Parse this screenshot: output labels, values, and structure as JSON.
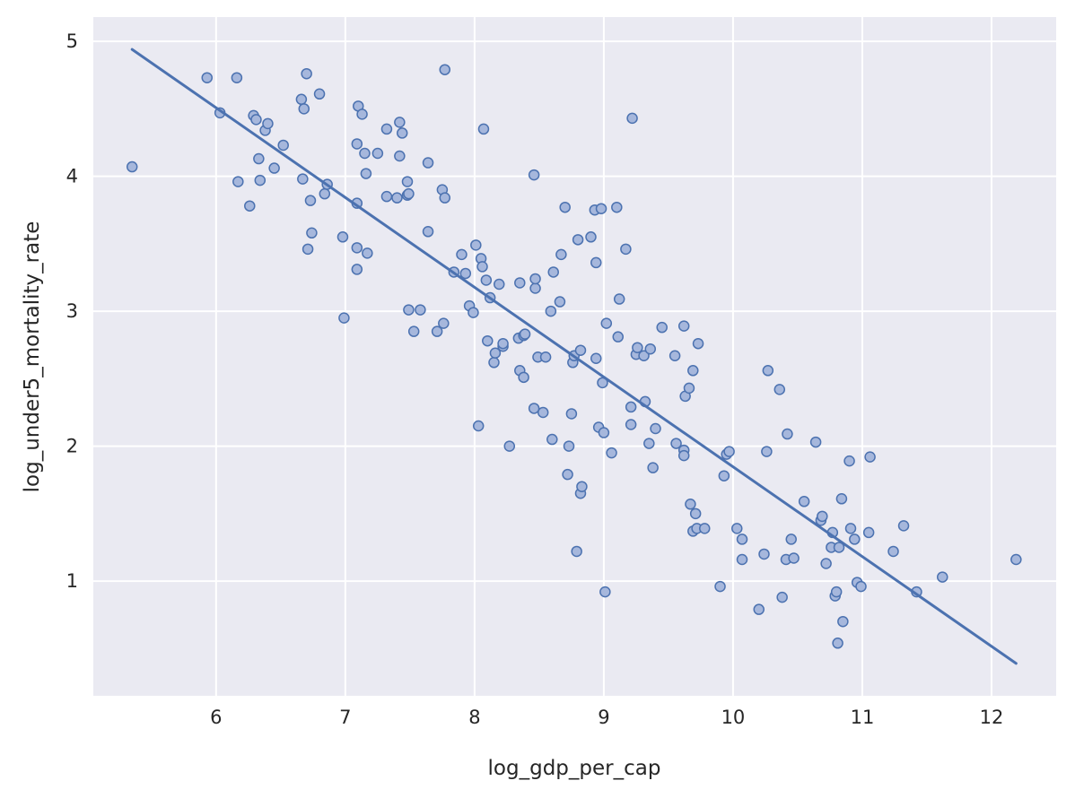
{
  "chart_data": {
    "type": "scatter",
    "title": "",
    "xlabel": "log_gdp_per_cap",
    "ylabel": "log_under5_mortality_rate",
    "xlim": [
      5.05,
      12.5
    ],
    "ylim": [
      0.15,
      5.18
    ],
    "x_ticks": [
      6,
      7,
      8,
      9,
      10,
      11,
      12
    ],
    "y_ticks": [
      1,
      2,
      3,
      4,
      5
    ],
    "grid": true,
    "legend": "none",
    "colors": {
      "background": "#eaeaf2",
      "grid": "#ffffff",
      "marker_fill": "#a6b7dc",
      "marker_edge": "#4c72b0",
      "line": "#4c72b0"
    },
    "regression_line": {
      "x": [
        5.35,
        12.19
      ],
      "y": [
        4.94,
        0.39
      ]
    },
    "points": [
      [
        5.35,
        4.07
      ],
      [
        5.93,
        4.73
      ],
      [
        6.03,
        4.47
      ],
      [
        6.16,
        4.73
      ],
      [
        6.17,
        3.96
      ],
      [
        6.26,
        3.78
      ],
      [
        6.29,
        4.45
      ],
      [
        6.31,
        4.42
      ],
      [
        6.33,
        4.13
      ],
      [
        6.34,
        3.97
      ],
      [
        6.38,
        4.34
      ],
      [
        6.4,
        4.39
      ],
      [
        6.45,
        4.06
      ],
      [
        6.52,
        4.23
      ],
      [
        6.66,
        4.57
      ],
      [
        6.67,
        3.98
      ],
      [
        6.68,
        4.5
      ],
      [
        6.7,
        4.76
      ],
      [
        6.71,
        3.46
      ],
      [
        6.73,
        3.82
      ],
      [
        6.74,
        3.58
      ],
      [
        6.8,
        4.61
      ],
      [
        6.84,
        3.87
      ],
      [
        6.86,
        3.94
      ],
      [
        6.98,
        3.55
      ],
      [
        6.99,
        2.95
      ],
      [
        7.09,
        4.24
      ],
      [
        7.09,
        3.8
      ],
      [
        7.09,
        3.47
      ],
      [
        7.09,
        3.31
      ],
      [
        7.1,
        4.52
      ],
      [
        7.13,
        4.46
      ],
      [
        7.15,
        4.17
      ],
      [
        7.16,
        4.02
      ],
      [
        7.17,
        3.43
      ],
      [
        7.25,
        4.17
      ],
      [
        7.32,
        4.35
      ],
      [
        7.32,
        3.85
      ],
      [
        7.4,
        3.84
      ],
      [
        7.42,
        4.4
      ],
      [
        7.42,
        4.15
      ],
      [
        7.44,
        4.32
      ],
      [
        7.48,
        3.96
      ],
      [
        7.48,
        3.86
      ],
      [
        7.49,
        3.87
      ],
      [
        7.49,
        3.01
      ],
      [
        7.53,
        2.85
      ],
      [
        7.58,
        3.01
      ],
      [
        7.64,
        4.1
      ],
      [
        7.64,
        3.59
      ],
      [
        7.71,
        2.85
      ],
      [
        7.75,
        3.9
      ],
      [
        7.76,
        2.91
      ],
      [
        7.77,
        4.79
      ],
      [
        7.77,
        3.84
      ],
      [
        7.84,
        3.29
      ],
      [
        7.9,
        3.42
      ],
      [
        7.93,
        3.28
      ],
      [
        7.96,
        3.04
      ],
      [
        7.99,
        2.99
      ],
      [
        8.01,
        3.49
      ],
      [
        8.03,
        2.15
      ],
      [
        8.05,
        3.39
      ],
      [
        8.06,
        3.33
      ],
      [
        8.07,
        4.35
      ],
      [
        8.09,
        3.23
      ],
      [
        8.1,
        2.78
      ],
      [
        8.12,
        3.1
      ],
      [
        8.15,
        2.62
      ],
      [
        8.16,
        2.69
      ],
      [
        8.19,
        3.2
      ],
      [
        8.22,
        2.74
      ],
      [
        8.22,
        2.76
      ],
      [
        8.27,
        2.0
      ],
      [
        8.34,
        2.8
      ],
      [
        8.35,
        2.56
      ],
      [
        8.35,
        3.21
      ],
      [
        8.38,
        2.82
      ],
      [
        8.38,
        2.51
      ],
      [
        8.39,
        2.83
      ],
      [
        8.46,
        4.01
      ],
      [
        8.46,
        2.28
      ],
      [
        8.47,
        3.17
      ],
      [
        8.47,
        3.24
      ],
      [
        8.49,
        2.66
      ],
      [
        8.53,
        2.25
      ],
      [
        8.55,
        2.66
      ],
      [
        8.59,
        3.0
      ],
      [
        8.6,
        2.05
      ],
      [
        8.61,
        3.29
      ],
      [
        8.66,
        3.07
      ],
      [
        8.67,
        3.42
      ],
      [
        8.7,
        3.77
      ],
      [
        8.72,
        1.79
      ],
      [
        8.73,
        2.0
      ],
      [
        8.75,
        2.24
      ],
      [
        8.76,
        2.62
      ],
      [
        8.77,
        2.67
      ],
      [
        8.79,
        1.22
      ],
      [
        8.8,
        3.53
      ],
      [
        8.82,
        1.65
      ],
      [
        8.82,
        2.71
      ],
      [
        8.83,
        1.7
      ],
      [
        8.9,
        3.55
      ],
      [
        8.93,
        3.75
      ],
      [
        8.94,
        2.65
      ],
      [
        8.94,
        3.36
      ],
      [
        8.96,
        2.14
      ],
      [
        8.98,
        3.76
      ],
      [
        8.99,
        2.47
      ],
      [
        9.0,
        2.1
      ],
      [
        9.01,
        0.92
      ],
      [
        9.02,
        2.91
      ],
      [
        9.06,
        1.95
      ],
      [
        9.1,
        3.77
      ],
      [
        9.11,
        2.81
      ],
      [
        9.12,
        3.09
      ],
      [
        9.17,
        3.46
      ],
      [
        9.21,
        2.29
      ],
      [
        9.21,
        2.16
      ],
      [
        9.22,
        4.43
      ],
      [
        9.25,
        2.68
      ],
      [
        9.26,
        2.73
      ],
      [
        9.31,
        2.67
      ],
      [
        9.32,
        2.33
      ],
      [
        9.35,
        2.02
      ],
      [
        9.36,
        2.72
      ],
      [
        9.38,
        1.84
      ],
      [
        9.4,
        2.13
      ],
      [
        9.45,
        2.88
      ],
      [
        9.55,
        2.67
      ],
      [
        9.56,
        2.02
      ],
      [
        9.62,
        1.97
      ],
      [
        9.62,
        1.93
      ],
      [
        9.62,
        2.89
      ],
      [
        9.63,
        2.37
      ],
      [
        9.66,
        2.43
      ],
      [
        9.67,
        1.57
      ],
      [
        9.69,
        1.37
      ],
      [
        9.69,
        2.56
      ],
      [
        9.71,
        1.5
      ],
      [
        9.72,
        1.39
      ],
      [
        9.73,
        2.76
      ],
      [
        9.78,
        1.39
      ],
      [
        9.9,
        0.96
      ],
      [
        9.93,
        1.78
      ],
      [
        9.95,
        1.94
      ],
      [
        9.97,
        1.96
      ],
      [
        10.03,
        1.39
      ],
      [
        10.07,
        1.31
      ],
      [
        10.07,
        1.16
      ],
      [
        10.2,
        0.79
      ],
      [
        10.24,
        1.2
      ],
      [
        10.26,
        1.96
      ],
      [
        10.27,
        2.56
      ],
      [
        10.36,
        2.42
      ],
      [
        10.38,
        0.88
      ],
      [
        10.41,
        1.16
      ],
      [
        10.42,
        2.09
      ],
      [
        10.45,
        1.31
      ],
      [
        10.47,
        1.17
      ],
      [
        10.55,
        1.59
      ],
      [
        10.64,
        2.03
      ],
      [
        10.68,
        1.45
      ],
      [
        10.69,
        1.48
      ],
      [
        10.72,
        1.13
      ],
      [
        10.76,
        1.25
      ],
      [
        10.77,
        1.36
      ],
      [
        10.79,
        0.89
      ],
      [
        10.8,
        0.92
      ],
      [
        10.81,
        0.54
      ],
      [
        10.82,
        1.25
      ],
      [
        10.84,
        1.61
      ],
      [
        10.85,
        0.7
      ],
      [
        10.9,
        1.89
      ],
      [
        10.91,
        1.39
      ],
      [
        10.94,
        1.31
      ],
      [
        10.96,
        0.99
      ],
      [
        10.99,
        0.96
      ],
      [
        11.05,
        1.36
      ],
      [
        11.06,
        1.92
      ],
      [
        11.24,
        1.22
      ],
      [
        11.32,
        1.41
      ],
      [
        11.42,
        0.92
      ],
      [
        11.62,
        1.03
      ],
      [
        12.19,
        1.16
      ]
    ]
  }
}
